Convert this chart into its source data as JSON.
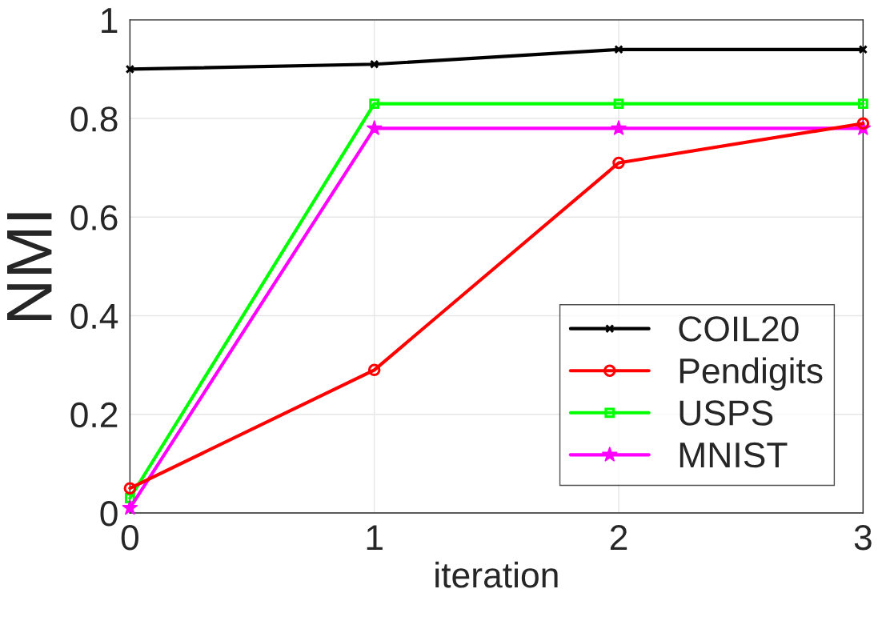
{
  "chart_data": {
    "type": "line",
    "xlabel": "iteration",
    "ylabel": "NMI",
    "x": [
      0,
      1,
      2,
      3
    ],
    "series": [
      {
        "name": "COIL20",
        "color": "#000000",
        "marker": "cross",
        "values": [
          0.9,
          0.91,
          0.94,
          0.94
        ]
      },
      {
        "name": "Pendigits",
        "color": "#ff0000",
        "marker": "circle",
        "values": [
          0.05,
          0.29,
          0.71,
          0.79
        ]
      },
      {
        "name": "USPS",
        "color": "#00ff00",
        "marker": "square",
        "values": [
          0.03,
          0.83,
          0.83,
          0.83
        ]
      },
      {
        "name": "MNIST",
        "color": "#ff00ff",
        "marker": "star",
        "values": [
          0.01,
          0.78,
          0.78,
          0.78
        ]
      }
    ],
    "xlim": [
      0,
      3
    ],
    "xticks": [
      0,
      1,
      2,
      3
    ],
    "ylim": [
      0,
      1
    ],
    "yticks": [
      0,
      0.2,
      0.4,
      0.6,
      0.8,
      1
    ],
    "grid": true,
    "legend": "bottom right",
    "line_style": "solid"
  }
}
